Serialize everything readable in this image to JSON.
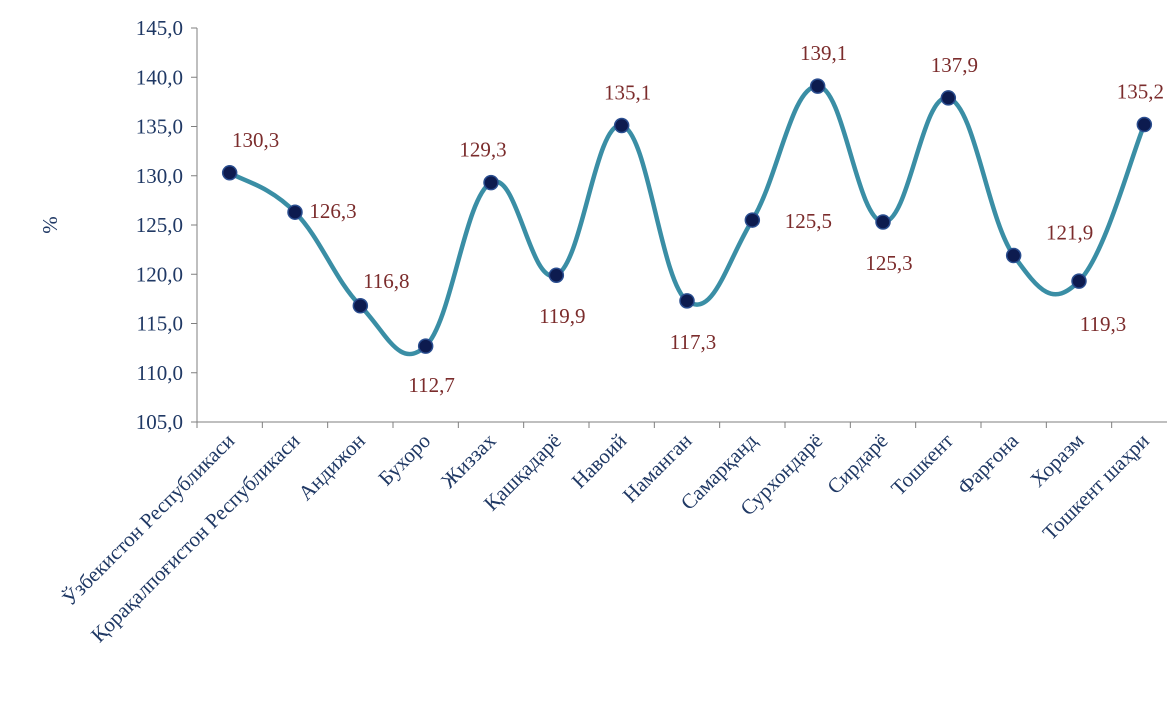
{
  "chart_data": {
    "type": "line",
    "ylabel": "%",
    "ylim": [
      105,
      145
    ],
    "ytick_step": 5,
    "y_tick_labels": [
      "105,0",
      "110,0",
      "115,0",
      "120,0",
      "125,0",
      "130,0",
      "135,0",
      "140,0",
      "145,0"
    ],
    "categories": [
      "Ўзбекистон Республикаси",
      "Қорақалпоғистон Республикаси",
      "Андижон",
      "Бухоро",
      "Жиззах",
      "Қашқадарё",
      "Навоий",
      "Наманган",
      "Самарқанд",
      "Сурхондарё",
      "Сирдарё",
      "Тошкент",
      "Фарғона",
      "Хоразм",
      "Тошкент шаҳри"
    ],
    "values": [
      130.3,
      126.3,
      116.8,
      112.7,
      129.3,
      119.9,
      135.1,
      117.3,
      125.5,
      139.1,
      125.3,
      137.9,
      121.9,
      119.3,
      135.2
    ],
    "value_labels": [
      "130,3",
      "126,3",
      "116,8",
      "112,7",
      "129,3",
      "119,9",
      "135,1",
      "117,3",
      "125,5",
      "139,1",
      "125,3",
      "137,9",
      "121,9",
      "119,3",
      "135,2"
    ],
    "grid": false,
    "legend": "none",
    "smooth": true,
    "colors": {
      "line": "#3a8ea5",
      "marker": "#0d1b4f",
      "axis": "#7f7f7f",
      "tick_text": "#1f3864",
      "data_label_text": "#7b2c2c"
    }
  }
}
